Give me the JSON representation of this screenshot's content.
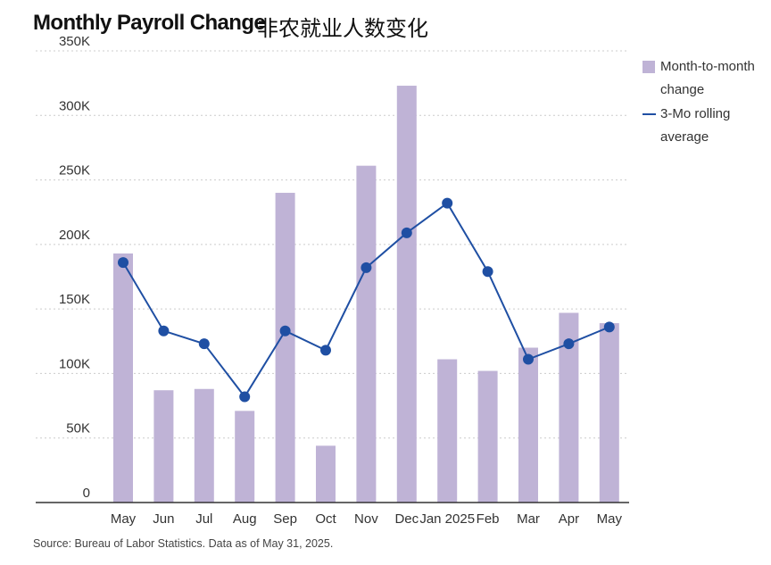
{
  "title": "Monthly Payroll Change",
  "subtitle": "非农就业人数变化",
  "source": "Source: Bureau of Labor Statistics. Data as of May 31, 2025.",
  "legend": {
    "bar_label": "Month-to-month change",
    "line_label": "3-Mo rolling average"
  },
  "colors": {
    "bar": "#bfb3d6",
    "line": "#1f4fa3",
    "grid": "#cccccc",
    "axis": "#333333"
  },
  "chart_data": {
    "type": "bar",
    "categories": [
      "May",
      "Jun",
      "Jul",
      "Aug",
      "Sep",
      "Oct",
      "Nov",
      "Dec",
      "Jan 2025",
      "Feb",
      "Mar",
      "Apr",
      "May"
    ],
    "ylim": [
      0,
      350
    ],
    "yticks": [
      0,
      50,
      100,
      150,
      200,
      250,
      300,
      350
    ],
    "ytick_labels": [
      "0",
      "50K",
      "100K",
      "150K",
      "200K",
      "250K",
      "300K",
      "350K"
    ],
    "grid": true,
    "legend_position": "top-right",
    "series": [
      {
        "name": "Month-to-month change",
        "type": "bar",
        "values": [
          193,
          87,
          88,
          71,
          240,
          44,
          261,
          323,
          111,
          102,
          120,
          147,
          139
        ]
      },
      {
        "name": "3-Mo rolling average",
        "type": "line",
        "values": [
          186,
          133,
          123,
          82,
          133,
          118,
          182,
          209,
          232,
          179,
          111,
          123,
          136
        ]
      }
    ]
  }
}
